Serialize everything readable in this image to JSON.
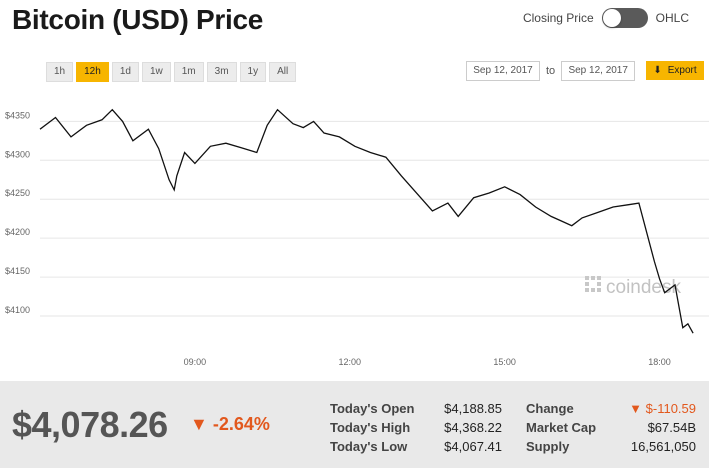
{
  "title": "Bitcoin (USD) Price",
  "toggle": {
    "left_label": "Closing Price",
    "right_label": "OHLC"
  },
  "ranges": [
    "1h",
    "12h",
    "1d",
    "1w",
    "1m",
    "3m",
    "1y",
    "All"
  ],
  "active_range": "12h",
  "dates": {
    "from": "Sep 12, 2017",
    "to_label": "to",
    "to": "Sep 12, 2017"
  },
  "export_label": "Export",
  "watermark": "coindesk",
  "colors": {
    "accent": "#f7b500",
    "negative": "#e2581d",
    "line": "#111111"
  },
  "chart_data": {
    "type": "line",
    "xlabel": "",
    "ylabel": "",
    "y_ticks": [
      "$4350",
      "$4300",
      "$4250",
      "$4200",
      "$4150",
      "$4100"
    ],
    "x_ticks": [
      "09:00",
      "12:00",
      "15:00",
      "18:00"
    ],
    "ylim": [
      4050,
      4380
    ],
    "grid": "horizontal",
    "x_hours": [
      6.0,
      6.3,
      6.6,
      6.9,
      7.2,
      7.4,
      7.6,
      7.8,
      8.1,
      8.3,
      8.5,
      8.6,
      8.65,
      8.8,
      9.0,
      9.3,
      9.6,
      9.9,
      10.2,
      10.4,
      10.6,
      10.9,
      11.1,
      11.3,
      11.5,
      11.8,
      12.1,
      12.4,
      12.7,
      13.0,
      13.2,
      13.4,
      13.6,
      13.9,
      14.1,
      14.4,
      14.7,
      15.0,
      15.3,
      15.6,
      15.9,
      16.1,
      16.3,
      16.5,
      16.8,
      17.1,
      17.4,
      17.6,
      17.9,
      18.0,
      18.1,
      18.3,
      18.45,
      18.55,
      18.65
    ],
    "values": [
      4340,
      4355,
      4330,
      4345,
      4352,
      4365,
      4350,
      4325,
      4340,
      4315,
      4275,
      4262,
      4280,
      4310,
      4296,
      4318,
      4322,
      4316,
      4310,
      4345,
      4365,
      4347,
      4342,
      4350,
      4335,
      4330,
      4318,
      4310,
      4304,
      4280,
      4265,
      4250,
      4235,
      4245,
      4228,
      4252,
      4258,
      4266,
      4256,
      4240,
      4228,
      4222,
      4216,
      4226,
      4233,
      4240,
      4243,
      4245,
      4170,
      4148,
      4130,
      4140,
      4085,
      4090,
      4078
    ]
  },
  "price": "$4,078.26",
  "change_pct": "-2.64%",
  "stats_left": [
    {
      "label": "Today's Open",
      "value": "$4,188.85"
    },
    {
      "label": "Today's High",
      "value": "$4,368.22"
    },
    {
      "label": "Today's Low",
      "value": "$4,067.41"
    }
  ],
  "stats_right": [
    {
      "label": "Change",
      "value": "$-110.59"
    },
    {
      "label": "Market Cap",
      "value": "$67.54B"
    },
    {
      "label": "Supply",
      "value": "16,561,050"
    }
  ]
}
